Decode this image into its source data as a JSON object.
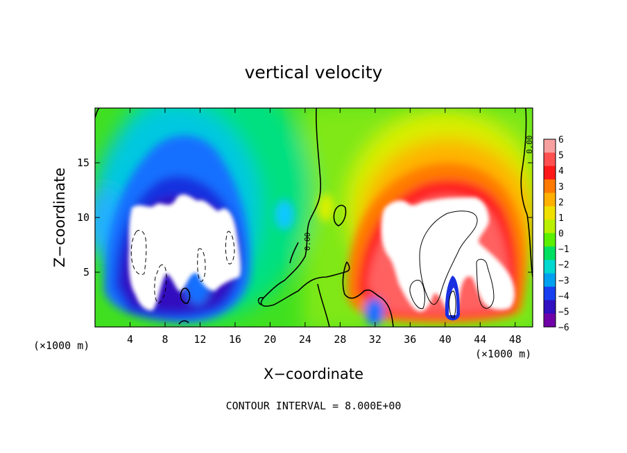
{
  "chart_data": {
    "type": "heatmap",
    "title": "vertical velocity",
    "xlabel": "X−coordinate",
    "ylabel": "Z−coordinate",
    "x_unit": "(×1000 m)",
    "x_unit_right": "(×1000 m)",
    "xlim": [
      0,
      50
    ],
    "ylim": [
      0,
      20
    ],
    "x_ticks": [
      4,
      8,
      12,
      16,
      20,
      24,
      28,
      32,
      36,
      40,
      44,
      48
    ],
    "y_ticks": [
      5,
      10,
      15
    ],
    "colorbar": {
      "levels": [
        6,
        5,
        4,
        3,
        2,
        1,
        0,
        -1,
        -2,
        -3,
        -4,
        -5,
        -6
      ],
      "labels": [
        "6",
        "5",
        "4",
        "3",
        "2",
        "1",
        "0",
        "−1",
        "−2",
        "−3",
        "−4",
        "−5",
        "−6"
      ],
      "colors": [
        "#f7a0a0",
        "#ff5050",
        "#ff1818",
        "#ff7a00",
        "#ffb000",
        "#f0e000",
        "#b8f000",
        "#5af000",
        "#00e060",
        "#00d8d0",
        "#00a0f0",
        "#1840f0",
        "#3010c0",
        "#7000a8"
      ]
    },
    "contour_labels": [
      "0.00",
      "0.00"
    ],
    "contour_interval_text": "CONTOUR INTERVAL = 8.000E+00",
    "features": [
      {
        "name": "downdraft-core",
        "x_center": 9.5,
        "z_center": 8,
        "value": -6
      },
      {
        "name": "updraft-core",
        "x_center": 40,
        "z_center": 7,
        "value": 6
      },
      {
        "name": "secondary-downdraft",
        "x_center": 41,
        "z_center": 2.5,
        "value": -6
      }
    ]
  }
}
